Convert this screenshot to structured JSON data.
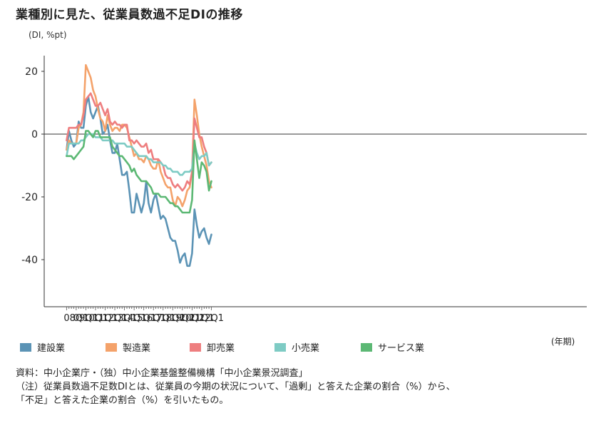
{
  "chart_data": {
    "type": "line",
    "title": "業種別に見た、従業員数過不足DIの推移",
    "ylabel": "(DI, %pt)",
    "xlabel": "(年期)",
    "ylim": [
      -55,
      25
    ],
    "yticks": [
      20,
      0,
      -20,
      -40
    ],
    "x_start": "2007Q1",
    "x_end": "2022Q1",
    "xtick_labels": [
      "08Q1",
      "09Q1",
      "10Q1",
      "11Q1",
      "12Q1",
      "13Q1",
      "14Q1",
      "15Q1",
      "16Q1",
      "17Q1",
      "18Q1",
      "19Q1",
      "20Q1",
      "21Q1",
      "22Q1"
    ],
    "series": [
      {
        "name": "建設業",
        "color": "#5b93b5",
        "values": [
          -5,
          1,
          -2,
          -4,
          -3,
          4,
          2,
          2,
          9,
          12,
          7,
          5,
          7,
          9,
          5,
          0,
          1,
          3,
          -2,
          -6,
          -6,
          -3,
          -8,
          -13,
          -13,
          -12,
          -18,
          -25,
          -25,
          -19,
          -22,
          -25,
          -22,
          -15,
          -22,
          -25,
          -21,
          -19,
          -23,
          -27,
          -26,
          -27,
          -30,
          -33,
          -34,
          -34,
          -37,
          -41,
          -39,
          -38,
          -42,
          -42,
          -38,
          -24,
          -29,
          -33,
          -31,
          -30,
          -33,
          -35,
          -32
        ]
      },
      {
        "name": "製造業",
        "color": "#f4a26a",
        "values": [
          -5,
          -2,
          -3,
          -3,
          -3,
          2,
          3,
          7,
          22,
          20,
          18,
          14,
          12,
          8,
          5,
          4,
          1,
          6,
          3,
          1,
          2,
          2,
          1,
          3,
          3,
          2,
          -1,
          -4,
          -7,
          -6,
          -8,
          -8,
          -9,
          -7,
          -8,
          -10,
          -11,
          -11,
          -8,
          -12,
          -14,
          -16,
          -17,
          -17,
          -21,
          -23,
          -20,
          -21,
          -23,
          -21,
          -18,
          -17,
          -12,
          11,
          6,
          0,
          -4,
          -7,
          -10,
          -15,
          -17
        ]
      },
      {
        "name": "卸売業",
        "color": "#ee7e7f",
        "values": [
          -2,
          2,
          2,
          2,
          2,
          3,
          3,
          6,
          11,
          12,
          13,
          11,
          9,
          9,
          10,
          8,
          6,
          8,
          4,
          3,
          4,
          3,
          3,
          2,
          3,
          3,
          -2,
          -2,
          -3,
          -2,
          -3,
          -4,
          -4,
          -3,
          -6,
          -5,
          -8,
          -8,
          -8,
          -9,
          -10,
          -13,
          -14,
          -14,
          -16,
          -17,
          -16,
          -17,
          -18,
          -17,
          -15,
          -16,
          -12,
          5,
          2,
          -1,
          -1,
          -4,
          -6,
          -10,
          -9
        ]
      },
      {
        "name": "小売業",
        "color": "#7ecbc4",
        "values": [
          -7,
          -3,
          -3,
          -3,
          -3,
          -3,
          -2,
          -2,
          -1,
          0,
          0,
          0,
          -1,
          -1,
          -1,
          -2,
          -2,
          -2,
          -2,
          -2,
          -3,
          -3,
          -3,
          -3,
          -3,
          -4,
          -4,
          -4,
          -5,
          -6,
          -7,
          -7,
          -7,
          -7,
          -8,
          -8,
          -9,
          -9,
          -9,
          -9,
          -10,
          -10,
          -11,
          -11,
          -12,
          -12,
          -12,
          -13,
          -13,
          -12,
          -12,
          -12,
          -11,
          -3,
          -6,
          -8,
          -7,
          -7,
          -6,
          -10,
          -9
        ]
      },
      {
        "name": "サービス業",
        "color": "#5cb874",
        "values": [
          -7,
          -7,
          -7,
          -8,
          -7,
          -6,
          -5,
          -4,
          1,
          1,
          0,
          -1,
          1,
          1,
          -1,
          -1,
          -1,
          -1,
          -1,
          -4,
          -5,
          -6,
          -7,
          -7,
          -8,
          -9,
          -10,
          -12,
          -11,
          -13,
          -14,
          -15,
          -15,
          -15,
          -16,
          -17,
          -19,
          -19,
          -19,
          -20,
          -20,
          -20,
          -21,
          -22,
          -22,
          -23,
          -23,
          -24,
          -25,
          -25,
          -25,
          -25,
          -21,
          -2,
          -8,
          -14,
          -9,
          -10,
          -12,
          -18,
          -15
        ]
      }
    ]
  },
  "notes": {
    "source": "資料：中小企業庁・（独）中小企業基盤整備機構「中小企業景況調査」",
    "note1": "（注）従業員数過不足数DIとは、従業員の今期の状況について、「過剰」と答えた企業の割合（%）から、",
    "note2": "「不足」と答えた企業の割合（%）を引いたもの。"
  }
}
